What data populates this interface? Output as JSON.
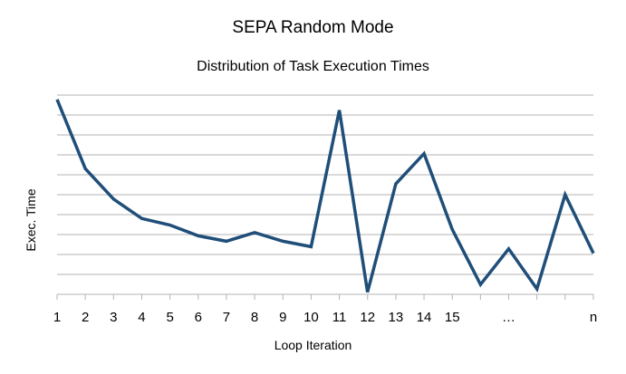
{
  "chart_data": {
    "type": "line",
    "title": "SEPA Random Mode",
    "subtitle": "Distribution of Task Execution Times",
    "xlabel": "Loop Iteration",
    "ylabel": "Exec. Time",
    "grid": true,
    "legend": "none",
    "series_color": "#1f4e79",
    "categories": [
      "1",
      "2",
      "3",
      "4",
      "5",
      "6",
      "7",
      "8",
      "9",
      "10",
      "11",
      "12",
      "13",
      "14",
      "15",
      "",
      "…",
      "",
      "",
      "n"
    ],
    "series": [
      {
        "values": [
          9.0,
          5.8,
          4.4,
          3.5,
          3.2,
          2.7,
          2.45,
          2.85,
          2.45,
          2.2,
          8.5,
          0.1,
          5.1,
          6.5,
          3.0,
          0.45,
          2.1,
          0.25,
          4.6,
          1.9
        ]
      }
    ],
    "ylim": [
      0,
      9.2
    ]
  }
}
